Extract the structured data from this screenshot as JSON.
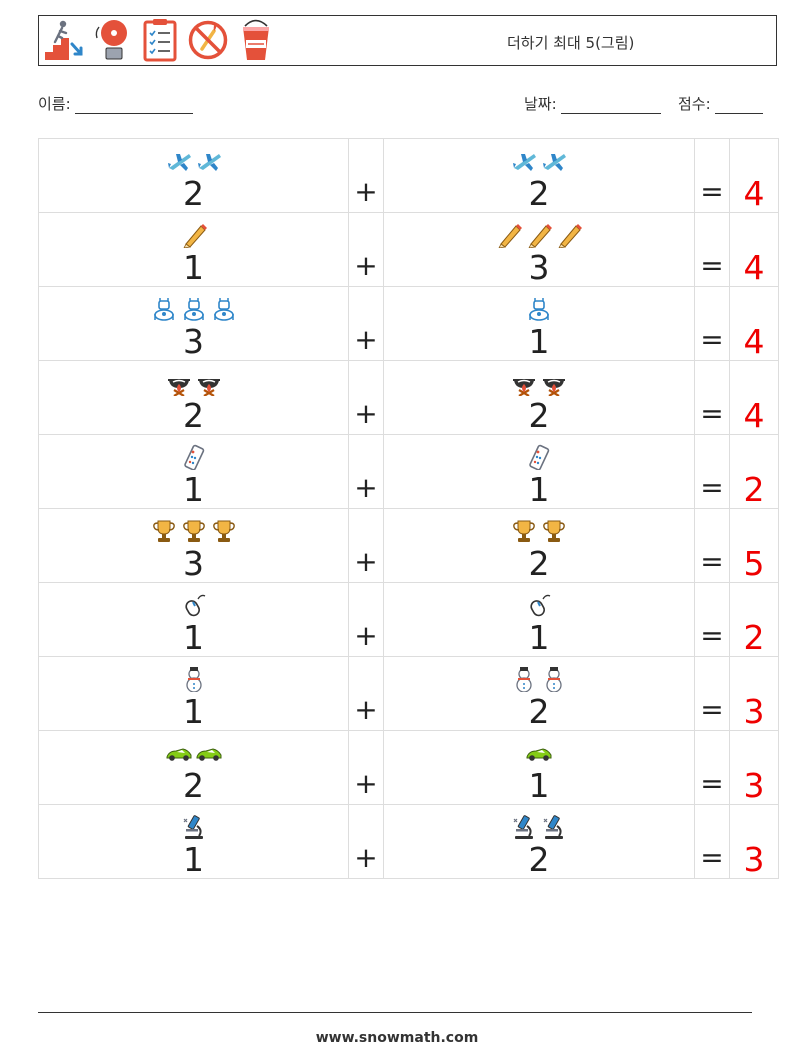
{
  "title": "더하기 최대 5(그림)",
  "header_icons": [
    "emergency-exit-stairs-icon",
    "fire-alarm-bell-icon",
    "checklist-clipboard-icon",
    "no-fire-icon",
    "fire-bucket-icon"
  ],
  "name_label": "이름:",
  "date_label": "날짜:",
  "score_label": "점수:",
  "plus_sign": "+",
  "equals_sign": "=",
  "problems": [
    {
      "icon": "airplane-icon",
      "a": "2",
      "b": "2",
      "answer": "4"
    },
    {
      "icon": "pencil-icon",
      "a": "1",
      "b": "3",
      "answer": "4"
    },
    {
      "icon": "robot-icon",
      "a": "3",
      "b": "1",
      "answer": "4"
    },
    {
      "icon": "campfire-pot-icon",
      "a": "2",
      "b": "2",
      "answer": "4"
    },
    {
      "icon": "remote-control-icon",
      "a": "1",
      "b": "1",
      "answer": "2"
    },
    {
      "icon": "trophy-icon",
      "a": "3",
      "b": "2",
      "answer": "5"
    },
    {
      "icon": "computer-mouse-icon",
      "a": "1",
      "b": "1",
      "answer": "2"
    },
    {
      "icon": "snowman-icon",
      "a": "1",
      "b": "2",
      "answer": "3"
    },
    {
      "icon": "race-car-icon",
      "a": "2",
      "b": "1",
      "answer": "3"
    },
    {
      "icon": "microscope-icon",
      "a": "1",
      "b": "2",
      "answer": "3"
    }
  ],
  "footer_url": "www.snowmath.com",
  "colors": {
    "answer": "#ee0000",
    "border": "#dddddd"
  }
}
